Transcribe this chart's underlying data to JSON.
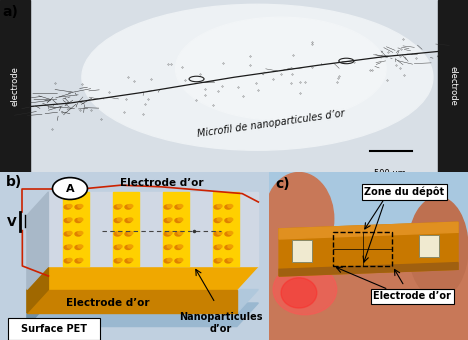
{
  "fig_width": 4.68,
  "fig_height": 3.4,
  "dpi": 100,
  "label_a": "a)",
  "label_b": "b)",
  "label_c": "c)",
  "text_microfil": "Microfil de nanoparticules d’or",
  "text_scalebar": "500 μm.",
  "text_electrode_left": "electrode",
  "text_electrode_right": "electrode",
  "text_electrode_or_top": "Electrode d’or",
  "text_electrode_or_bottom": "Electrode d’or",
  "text_surface_pet": "Surface PET",
  "text_nanoparticules": "Nanoparticules\nd’or",
  "text_V": "V",
  "text_A": "A",
  "text_zone_depot": "Zone du dépôt",
  "text_electrode_or_c": "Electrode d’or",
  "panel_a_bg": "#c8c8c8",
  "panel_a_bright": "#e8ecef",
  "electrode_black": "#1a1a1a",
  "panel_b_bg": "#c0d0e0",
  "gold_main": "#F0A800",
  "gold_bright": "#FFD000",
  "gold_dark": "#C88000",
  "pet_blue": "#9ab8d0",
  "pet_side": "#7090a8",
  "top_surface": "#d0d8e0",
  "panel_c_bg": "#a8c8e0",
  "skin_color": "#d08060",
  "skin_dark": "#c07050",
  "orange_pcb": "#C87800",
  "orange_bright": "#E09020",
  "label_fontsize": 10,
  "text_fontsize": 7,
  "small_fontsize": 6,
  "anno_fontsize": 7
}
